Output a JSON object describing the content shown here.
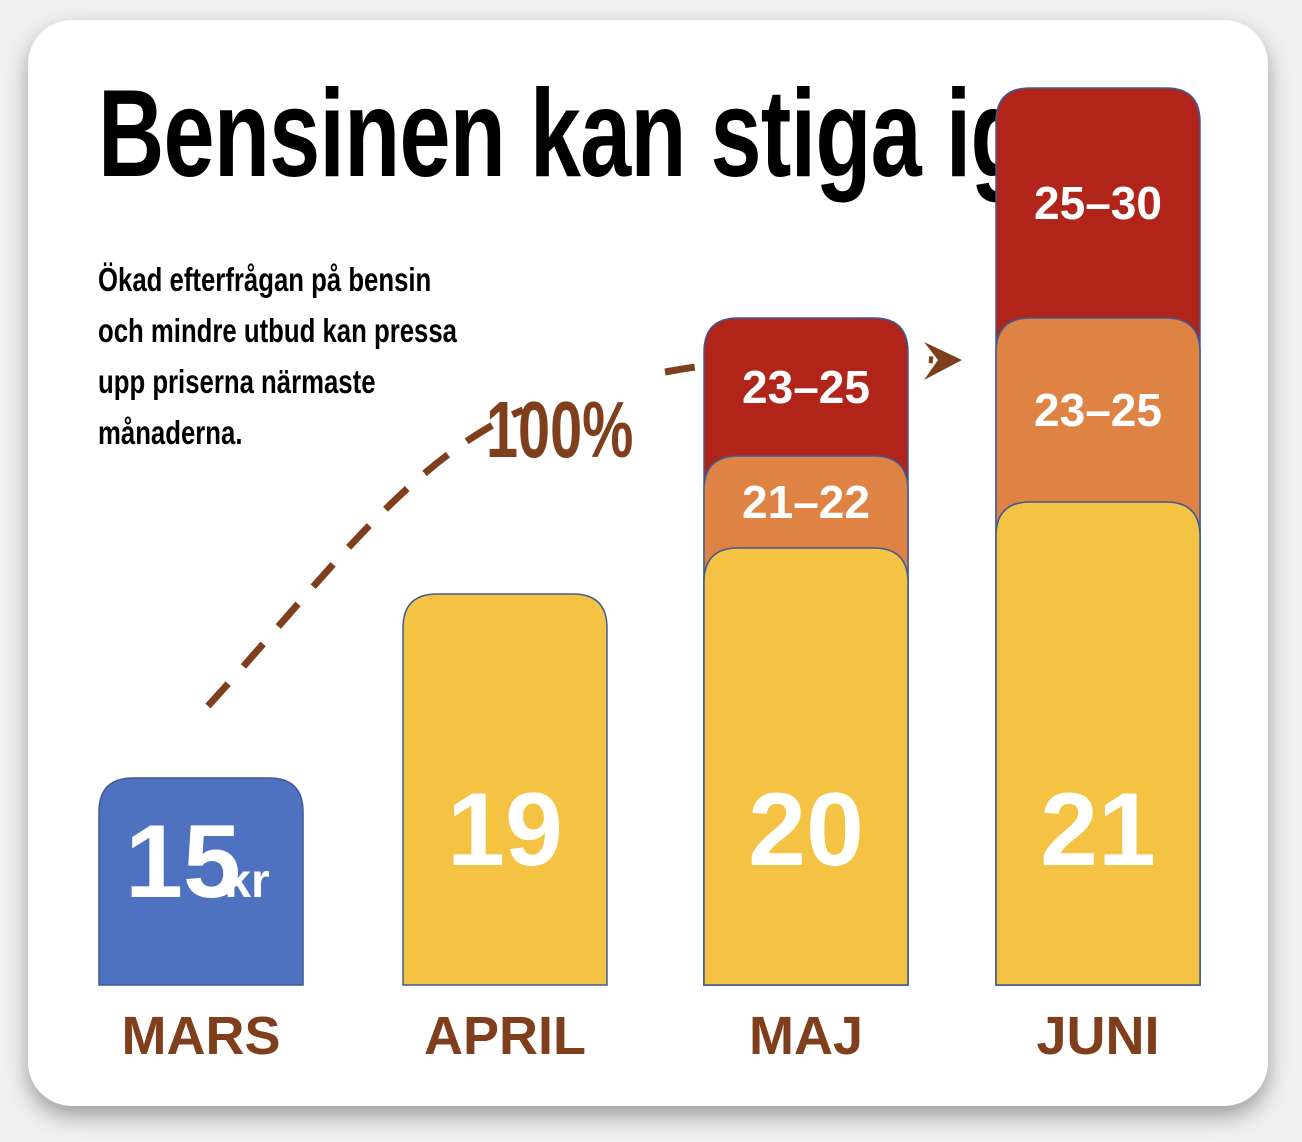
{
  "chart_data": {
    "type": "bar",
    "title": "Bensinen kan stiga igen",
    "subtitle_lines": [
      "Ökad efterfrågan på bensin",
      "och mindre utbud kan pressa",
      "upp priserna närmaste",
      "månaderna."
    ],
    "annotation": "100%",
    "unit": "kr",
    "categories": [
      "MARS",
      "APRIL",
      "MAJ",
      "JUNI"
    ],
    "series": [
      {
        "values": [
          15,
          19,
          20,
          21
        ],
        "labels": [
          "15",
          "19",
          "20",
          "21"
        ]
      },
      {
        "values": [
          null,
          null,
          22,
          25
        ],
        "labels": [
          "",
          "",
          "21–22",
          "23–25"
        ]
      },
      {
        "values": [
          null,
          null,
          25,
          30
        ],
        "labels": [
          "",
          "",
          "23–25",
          "25–30"
        ]
      }
    ],
    "colors": {
      "actual": "#4f72c0",
      "base": "#f4c343",
      "mid": "#df8344",
      "high": "#b12419",
      "bar_outline": "#3e5a94",
      "accent": "#7f3f1c",
      "value_text": "#ffffff"
    }
  }
}
